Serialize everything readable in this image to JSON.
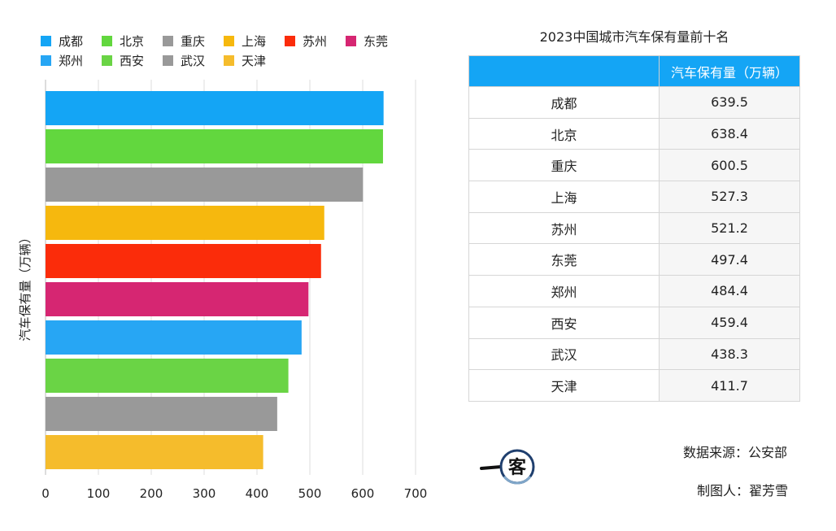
{
  "chart_data": {
    "type": "bar",
    "orientation": "horizontal",
    "categories": [
      "成都",
      "北京",
      "重庆",
      "上海",
      "苏州",
      "东莞",
      "郑州",
      "西安",
      "武汉",
      "天津"
    ],
    "values": [
      639.5,
      638.4,
      600.5,
      527.3,
      521.2,
      497.4,
      484.4,
      459.4,
      438.3,
      411.7
    ],
    "colors": [
      "#14a5f5",
      "#62d73e",
      "#999999",
      "#f6b80e",
      "#fb2c0a",
      "#d62672",
      "#27a6f4",
      "#6ad445",
      "#999999",
      "#f5bc2c"
    ],
    "ylabel": "汽车保有量（万辆）",
    "xlim": [
      0,
      700
    ],
    "xticks": [
      0,
      100,
      200,
      300,
      400,
      500,
      600,
      700
    ],
    "grid": "vertical",
    "legend_position": "top"
  },
  "table": {
    "title": "2023中国城市汽车保有量前十名",
    "col1_header": "",
    "col2_header": "汽车保有量（万辆）",
    "rows": [
      {
        "city": "成都",
        "value": "639.5"
      },
      {
        "city": "北京",
        "value": "638.4"
      },
      {
        "city": "重庆",
        "value": "600.5"
      },
      {
        "city": "上海",
        "value": "527.3"
      },
      {
        "city": "苏州",
        "value": "521.2"
      },
      {
        "city": "东莞",
        "value": "497.4"
      },
      {
        "city": "郑州",
        "value": "484.4"
      },
      {
        "city": "西安",
        "value": "459.4"
      },
      {
        "city": "武汉",
        "value": "438.3"
      },
      {
        "city": "天津",
        "value": "411.7"
      }
    ]
  },
  "footer": {
    "source": "数据来源：公安部",
    "author": "制图人：翟芳雪",
    "logo_text": "一客"
  }
}
